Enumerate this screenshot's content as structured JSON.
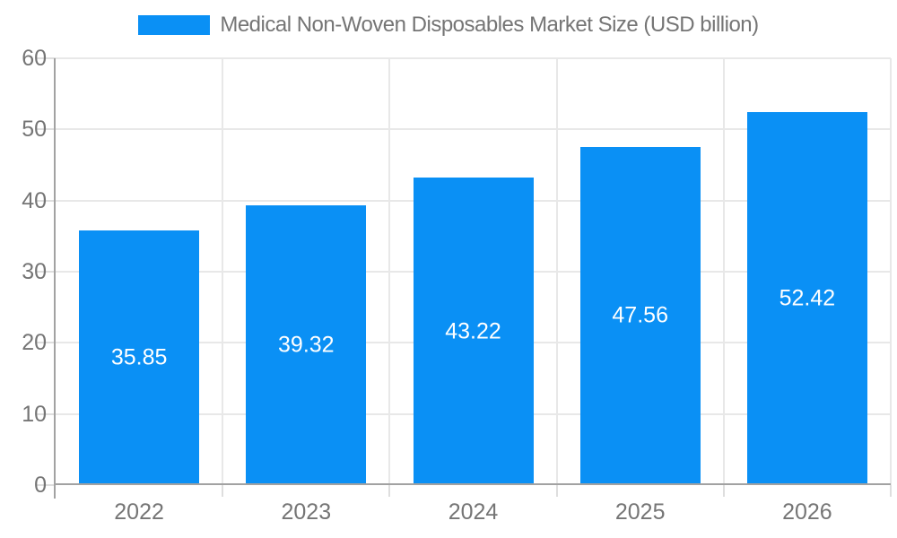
{
  "legend": {
    "series_label": "Medical Non-Woven Disposables Market Size (USD billion)",
    "swatch_color": "#0a90f5"
  },
  "chart_data": {
    "type": "bar",
    "title": "Medical Non-Woven Disposables Market Size (USD billion)",
    "categories": [
      "2022",
      "2023",
      "2024",
      "2025",
      "2026"
    ],
    "values": [
      35.85,
      39.32,
      43.22,
      47.56,
      52.42
    ],
    "value_labels": [
      "35.85",
      "39.32",
      "43.22",
      "47.56",
      "52.42"
    ],
    "xlabel": "",
    "ylabel": "",
    "ylim": [
      0,
      60
    ],
    "yticks": [
      0,
      10,
      20,
      30,
      40,
      50,
      60
    ],
    "grid": true,
    "legend_position": "top-center",
    "bar_color": "#0a90f5",
    "axis_label_color": "#757575",
    "grid_color": "#e8e8e8",
    "axis_line_color": "#a2a2a2",
    "value_label_color": "#ffffff"
  }
}
